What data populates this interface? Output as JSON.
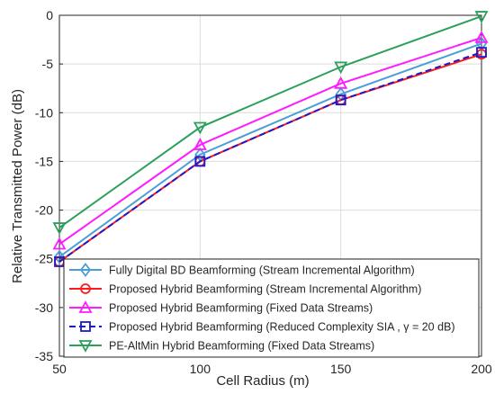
{
  "chart_data": {
    "type": "line",
    "title": "",
    "xlabel": "Cell Radius (m)",
    "ylabel": "Relative Transmitted Power (dB)",
    "xlim": [
      50,
      200
    ],
    "ylim": [
      -35,
      0
    ],
    "xticks": [
      50,
      100,
      150,
      200
    ],
    "yticks": [
      0,
      -5,
      -10,
      -15,
      -20,
      -25,
      -30,
      -35
    ],
    "grid": true,
    "legend_position": "bottom-right",
    "x": [
      50,
      100,
      150,
      200
    ],
    "series": [
      {
        "name": "Fully Digital BD Beamforming (Stream Incremental Algorithm)",
        "values": [
          -24.8,
          -14.3,
          -8.1,
          -2.9
        ],
        "color": "#4a9fd6",
        "marker": "diamond",
        "dash": "solid"
      },
      {
        "name": "Proposed Hybrid Beamforming (Stream Incremental Algorithm)",
        "values": [
          -25.3,
          -15.0,
          -8.7,
          -4.0
        ],
        "color": "#ff1a1a",
        "marker": "circle",
        "dash": "solid"
      },
      {
        "name": "Proposed Hybrid Beamforming (Fixed Data Streams)",
        "values": [
          -23.5,
          -13.3,
          -7.0,
          -2.3
        ],
        "color": "#ff1aff",
        "marker": "triangle-up",
        "dash": "solid"
      },
      {
        "name": "Proposed Hybrid Beamforming (Reduced Complexity SIA , γ = 20 dB)",
        "values": [
          -25.3,
          -15.0,
          -8.7,
          -3.8
        ],
        "color": "#1a1acc",
        "marker": "square",
        "dash": "dashed"
      },
      {
        "name": "PE-AltMin Hybrid Beamforming (Fixed Data Streams)",
        "values": [
          -21.8,
          -11.5,
          -5.3,
          -0.1
        ],
        "color": "#2ba05a",
        "marker": "triangle-down",
        "dash": "solid"
      }
    ]
  }
}
